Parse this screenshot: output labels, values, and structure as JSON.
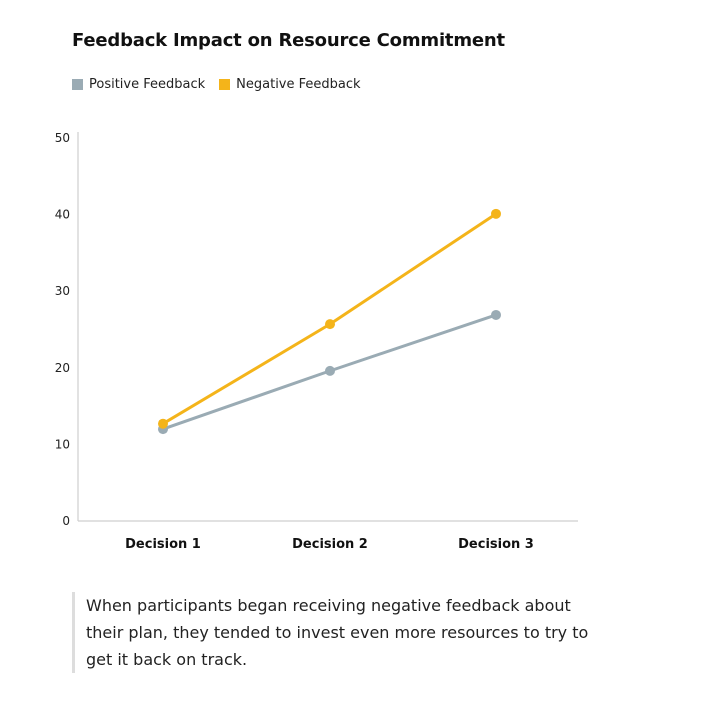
{
  "title": "Feedback Impact on Resource Commitment",
  "legend": [
    {
      "label": "Positive Feedback",
      "color": "#9aabb4"
    },
    {
      "label": "Negative Feedback",
      "color": "#f4b41a"
    }
  ],
  "caption": "When participants began receiving negative feedback about their plan, they tended to invest even more resources to try to get it back on track.",
  "chart_data": {
    "type": "line",
    "title": "Feedback Impact on Resource Commitment",
    "categories": [
      "Decision 1",
      "Decision 2",
      "Decision 3"
    ],
    "series": [
      {
        "name": "Positive Feedback",
        "color": "#9aabb4",
        "values": [
          12.0,
          19.6,
          26.9
        ]
      },
      {
        "name": "Negative Feedback",
        "color": "#f4b41a",
        "values": [
          12.7,
          25.7,
          40.1
        ]
      }
    ],
    "xlabel": "",
    "ylabel": "",
    "ylim": [
      0,
      50
    ],
    "yticks": [
      0,
      10,
      20,
      30,
      40,
      50
    ],
    "grid": false,
    "legend_position": "top-left"
  }
}
